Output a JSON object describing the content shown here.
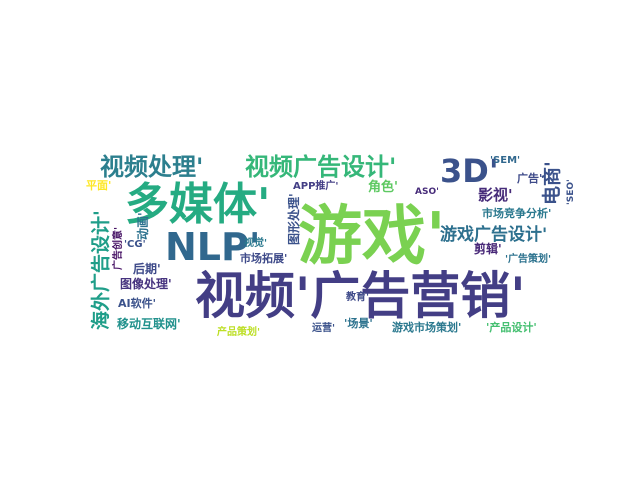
{
  "chart_data": {
    "type": "wordcloud",
    "words": [
      "游戏'",
      "视频'广告营销'",
      "多媒体'",
      "NLP'",
      "3D'",
      "视频处理'",
      "视频广告设计'",
      "游戏广告设计'",
      "海外广告设计'",
      "电商'",
      "影视'",
      "广告'",
      "角色'",
      "APP推广'",
      "'SEM'",
      "平面'",
      "市场竞争分析'",
      "图形处理'",
      "视觉'",
      "市场拓展'",
      "'CG'",
      "动画'",
      "广告创意'",
      "后期'",
      "图像处理'",
      "AI软件'",
      "移动互联网'",
      "产品策划'",
      "运营'",
      "'场景'",
      "游戏市场策划'",
      "'产品设计'",
      "教育'",
      "剪辑'",
      "'广告策划'",
      "ASO'",
      "'SEO'"
    ],
    "colors": [
      "#7ad151",
      "#433e85",
      "#25ab82",
      "#31688e",
      "#3b528b",
      "#2c7f8e",
      "#35b779",
      "#2d708e",
      "#1f9e89",
      "#3b528b",
      "#472c7a",
      "#3e4a89",
      "#5ec962",
      "#433e85",
      "#31688e",
      "#fde725",
      "#2a788e",
      "#3b528b",
      "#2a788e",
      "#3e4a89",
      "#3b528b",
      "#2c728e",
      "#471365",
      "#3e4a89",
      "#46337f",
      "#3b528b",
      "#21918c",
      "#bddf26",
      "#3b528b",
      "#2c728e",
      "#2a788e",
      "#44bf70",
      "#3e4a89",
      "#482878",
      "#2c728e",
      "#472c7a",
      "#3b528b"
    ]
  }
}
